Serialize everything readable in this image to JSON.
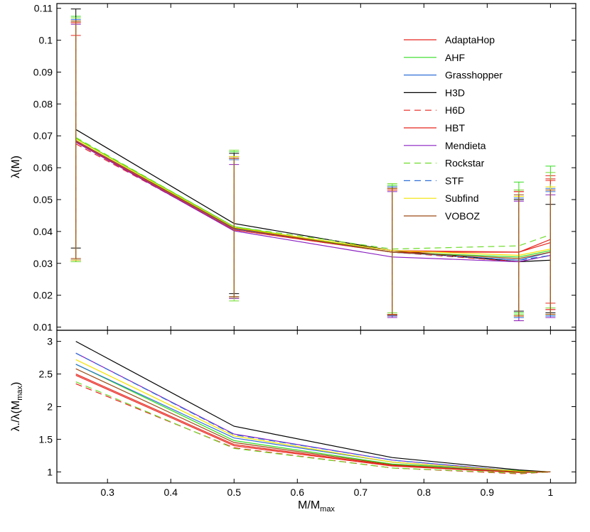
{
  "chart_data": [
    {
      "type": "line",
      "panel": "top",
      "ylabel": "λ(M)",
      "xlim": [
        0.22,
        1.04
      ],
      "ylim": [
        0.009,
        0.1115
      ],
      "yticks": [
        0.01,
        0.02,
        0.03,
        0.04,
        0.05,
        0.06,
        0.07,
        0.08,
        0.09,
        0.1,
        0.11
      ],
      "ytick_labels": [
        "0.01",
        "0.02",
        "0.03",
        "0.04",
        "0.05",
        "0.06",
        "0.07",
        "0.08",
        "0.09",
        "0.1",
        "0.11"
      ],
      "x": [
        0.25,
        0.5,
        0.75,
        0.95,
        1.0
      ],
      "legend_position": "top-right",
      "series": [
        {
          "name": "AdaptaHop",
          "color": "#e8241d",
          "dash": "solid",
          "values": [
            0.0685,
            0.041,
            0.034,
            0.0335,
            0.0375
          ],
          "errors": [
            [
              0.0315,
              0.1055
            ],
            [
              0.0195,
              0.063
            ],
            [
              0.0137,
              0.053
            ],
            [
              0.0135,
              0.053
            ],
            [
              0.0155,
              0.056
            ]
          ]
        },
        {
          "name": "AHF",
          "color": "#33dd1f",
          "dash": "solid",
          "values": [
            0.0692,
            0.0415,
            0.0335,
            0.032,
            0.034
          ],
          "errors": [
            [
              0.0305,
              0.1075
            ],
            [
              0.019,
              0.065
            ],
            [
              0.014,
              0.0545
            ],
            [
              0.0145,
              0.0555
            ],
            [
              0.014,
              0.0605
            ]
          ]
        },
        {
          "name": "Grasshopper",
          "color": "#2f6fd6",
          "dash": "solid",
          "values": [
            0.0685,
            0.0408,
            0.0335,
            0.031,
            0.0335
          ],
          "errors": [
            [
              0.031,
              0.106
            ],
            [
              0.0195,
              0.0625
            ],
            [
              0.0135,
              0.0535
            ],
            [
              0.013,
              0.0505
            ],
            [
              0.0135,
              0.0535
            ]
          ]
        },
        {
          "name": "H3D",
          "color": "#000000",
          "dash": "solid",
          "values": [
            0.072,
            0.0425,
            0.034,
            0.0305,
            0.031
          ],
          "errors": [
            [
              0.0348,
              0.1098
            ],
            [
              0.0205,
              0.0645
            ],
            [
              0.014,
              0.054
            ],
            [
              0.015,
              0.05
            ],
            [
              0.0145,
              0.0485
            ]
          ]
        },
        {
          "name": "H6D",
          "color": "#e8241d",
          "dash": "dashed",
          "values": [
            0.0675,
            0.0405,
            0.0335,
            0.0305,
            0.0325
          ],
          "errors": [
            [
              0.0305,
              0.1015
            ],
            [
              0.019,
              0.0635
            ],
            [
              0.014,
              0.0535
            ],
            [
              0.012,
              0.0525
            ],
            [
              0.0175,
              0.0575
            ]
          ]
        },
        {
          "name": "HBT",
          "color": "#e8241d",
          "dash": "solid",
          "values": [
            0.0682,
            0.0405,
            0.0335,
            0.0335,
            0.0365
          ],
          "errors": [
            [
              0.031,
              0.1055
            ],
            [
              0.0195,
              0.063
            ],
            [
              0.0135,
              0.053
            ],
            [
              0.0135,
              0.0525
            ],
            [
              0.0155,
              0.0565
            ]
          ]
        },
        {
          "name": "Mendieta",
          "color": "#8a1fc0",
          "dash": "solid",
          "values": [
            0.068,
            0.0402,
            0.032,
            0.0305,
            0.0325
          ],
          "errors": [
            [
              0.031,
              0.105
            ],
            [
              0.019,
              0.061
            ],
            [
              0.013,
              0.0525
            ],
            [
              0.012,
              0.0495
            ],
            [
              0.013,
              0.0515
            ]
          ]
        },
        {
          "name": "Rockstar",
          "color": "#6fdc2a",
          "dash": "dashed",
          "values": [
            0.0695,
            0.0415,
            0.0345,
            0.0355,
            0.039
          ],
          "errors": [
            [
              0.0305,
              0.107
            ],
            [
              0.0182,
              0.0655
            ],
            [
              0.0145,
              0.055
            ],
            [
              0.014,
              0.053
            ],
            [
              0.016,
              0.0585
            ]
          ]
        },
        {
          "name": "STF",
          "color": "#2f6fd6",
          "dash": "dashed",
          "values": [
            0.0685,
            0.041,
            0.0335,
            0.031,
            0.0325
          ],
          "errors": [
            [
              0.031,
              0.1065
            ],
            [
              0.0195,
              0.0635
            ],
            [
              0.0135,
              0.054
            ],
            [
              0.013,
              0.051
            ],
            [
              0.0135,
              0.0525
            ]
          ]
        },
        {
          "name": "Subfind",
          "color": "#f4e400",
          "dash": "solid",
          "values": [
            0.069,
            0.0412,
            0.034,
            0.0325,
            0.0345
          ],
          "errors": [
            [
              0.031,
              0.106
            ],
            [
              0.0195,
              0.0635
            ],
            [
              0.014,
              0.0535
            ],
            [
              0.0135,
              0.051
            ],
            [
              0.014,
              0.054
            ]
          ]
        },
        {
          "name": "VOBOZ",
          "color": "#9b4a14",
          "dash": "solid",
          "values": [
            0.0685,
            0.041,
            0.0335,
            0.0315,
            0.0335
          ],
          "errors": [
            [
              0.0315,
              0.106
            ],
            [
              0.0195,
              0.063
            ],
            [
              0.014,
              0.0535
            ],
            [
              0.0135,
              0.0515
            ],
            [
              0.014,
              0.053
            ]
          ]
        }
      ]
    },
    {
      "type": "line",
      "panel": "bottom",
      "xlabel": "M/M",
      "xlabel_sub": "max",
      "ylabel": "λ./λ(M",
      "ylabel_sub": "max",
      "ylabel_end": ")",
      "xlim": [
        0.22,
        1.04
      ],
      "ylim": [
        0.83,
        3.17
      ],
      "xticks": [
        0.3,
        0.4,
        0.5,
        0.6,
        0.7,
        0.8,
        0.9,
        1.0
      ],
      "xtick_labels": [
        "0.3",
        "0.4",
        "0.5",
        "0.6",
        "0.7",
        "0.8",
        "0.9",
        "1"
      ],
      "yticks": [
        1,
        1.5,
        2,
        2.5,
        3
      ],
      "ytick_labels": [
        "1",
        "1.5",
        "2",
        "2.5",
        "3"
      ],
      "x": [
        0.25,
        0.5,
        0.75,
        0.95,
        1.0
      ],
      "series": [
        {
          "name": "AdaptaHop",
          "color": "#e8241d",
          "dash": "solid",
          "values": [
            2.5,
            1.42,
            1.1,
            1.0,
            1.0
          ]
        },
        {
          "name": "AHF",
          "color": "#33dd1f",
          "dash": "solid",
          "values": [
            2.65,
            1.48,
            1.12,
            1.02,
            1.0
          ]
        },
        {
          "name": "Grasshopper",
          "color": "#2f6fd6",
          "dash": "solid",
          "values": [
            2.65,
            1.52,
            1.15,
            1.0,
            1.0
          ]
        },
        {
          "name": "H3D",
          "color": "#000000",
          "dash": "solid",
          "values": [
            3.0,
            1.7,
            1.22,
            1.03,
            1.0
          ]
        },
        {
          "name": "H6D",
          "color": "#e8241d",
          "dash": "dashed",
          "values": [
            2.35,
            1.37,
            1.06,
            0.97,
            1.0
          ]
        },
        {
          "name": "HBT",
          "color": "#e8241d",
          "dash": "solid",
          "values": [
            2.48,
            1.4,
            1.09,
            0.99,
            1.0
          ]
        },
        {
          "name": "Mendieta",
          "color": "#8a1fc0",
          "dash": "solid",
          "values": [
            2.82,
            1.58,
            1.18,
            1.01,
            1.0
          ]
        },
        {
          "name": "Rockstar",
          "color": "#6fdc2a",
          "dash": "dashed",
          "values": [
            2.38,
            1.36,
            1.06,
            0.98,
            1.0
          ]
        },
        {
          "name": "STF",
          "color": "#2f6fd6",
          "dash": "dashed",
          "values": [
            2.82,
            1.57,
            1.18,
            1.01,
            1.0
          ]
        },
        {
          "name": "Subfind",
          "color": "#f4e400",
          "dash": "solid",
          "values": [
            2.72,
            1.55,
            1.15,
            1.01,
            1.0
          ]
        },
        {
          "name": "VOBOZ",
          "color": "#9b4a14",
          "dash": "solid",
          "values": [
            2.58,
            1.45,
            1.11,
            1.0,
            1.0
          ]
        }
      ]
    }
  ]
}
